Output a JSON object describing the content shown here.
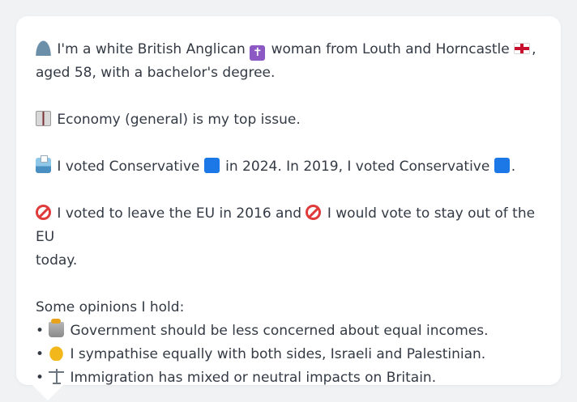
{
  "profile": {
    "line1_a": "I'm a white British Anglican",
    "line1_b": "woman from Louth and Horncastle",
    "line1_c": ",",
    "line2": "aged 58, with a bachelor's degree."
  },
  "issue": {
    "text": "Economy (general) is my top issue."
  },
  "votes": {
    "text_a": "I voted Conservative",
    "text_b": "in 2024. In 2019, I voted Conservative",
    "text_c": "."
  },
  "brexit": {
    "text_a": "I voted to leave the EU in 2016 and",
    "text_b": "I would vote to stay out of the EU",
    "text_c": "today."
  },
  "opinions": {
    "heading": "Some opinions I hold:",
    "items": [
      {
        "icon": "money-bin-icon",
        "text": "Government should be less concerned about equal incomes."
      },
      {
        "icon": "handshake-icon",
        "text": "I sympathise equally with both sides, Israeli and Palestinian."
      },
      {
        "icon": "scales-icon",
        "text": "Immigration has mixed or neutral impacts on Britain."
      }
    ]
  },
  "icons": {
    "person": "person-icon",
    "religion": "latin-cross-icon",
    "region": "england-flag-icon",
    "issue": "ledger-book-icon",
    "ballot": "ballot-box-icon",
    "party": "blue-square-icon",
    "prohibited": "no-entry-icon"
  },
  "colors": {
    "party_blue": "#1c78e6",
    "text": "#333a44",
    "card": "#ffffff",
    "background": "#f1f2f4"
  }
}
